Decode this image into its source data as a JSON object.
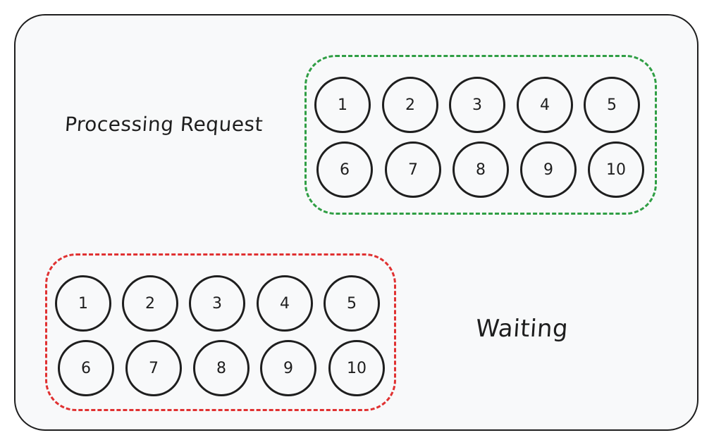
{
  "processing": {
    "label": "Processing Request",
    "color": "#2f9e44",
    "slots": [
      "1",
      "2",
      "3",
      "4",
      "5",
      "6",
      "7",
      "8",
      "9",
      "10"
    ]
  },
  "waiting": {
    "label": "Waiting",
    "color": "#e03131",
    "slots": [
      "1",
      "2",
      "3",
      "4",
      "5",
      "6",
      "7",
      "8",
      "9",
      "10"
    ]
  }
}
